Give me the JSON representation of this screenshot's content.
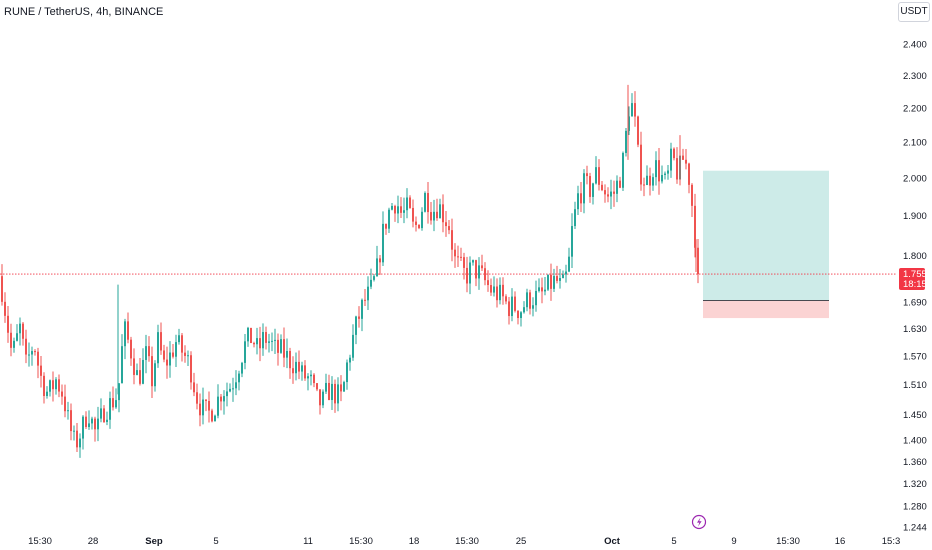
{
  "header": {
    "title": "RUNE / TetherUS, 4h, BINANCE",
    "currency_label": "USDT"
  },
  "colors": {
    "up": "#26a69a",
    "down": "#ef5350",
    "profit_zone": "#cdebe8",
    "loss_zone": "#fbd3d3",
    "price_line": "#f23645",
    "price_label_bg": "#f23645",
    "event_icon": "#9c27b0"
  },
  "icons": {
    "event": "lightning-icon"
  },
  "chart_data": {
    "type": "candlestick",
    "symbol": "RUNE / TetherUS",
    "interval": "4h",
    "exchange": "BINANCE",
    "y_scale": "log",
    "ylim": [
      1.23,
      2.5
    ],
    "y_ticks": [
      "2.400",
      "2.300",
      "2.200",
      "2.100",
      "2.000",
      "1.900",
      "1.800",
      "1.690",
      "1.630",
      "1.570",
      "1.510",
      "1.450",
      "1.400",
      "1.360",
      "1.320",
      "1.280",
      "1.244"
    ],
    "x_ticks": [
      "15:30",
      "28",
      "Sep",
      "5",
      "11",
      "15:30",
      "18",
      "15:30",
      "25",
      "Oct",
      "5",
      "9",
      "15:30",
      "16",
      "15:3"
    ],
    "current_price": 1.755,
    "countdown": "18:15",
    "path": [
      [
        0,
        1.75
      ],
      [
        6,
        1.66
      ],
      [
        12,
        1.57
      ],
      [
        20,
        1.63
      ],
      [
        26,
        1.55
      ],
      [
        34,
        1.6
      ],
      [
        40,
        1.53
      ],
      [
        48,
        1.49
      ],
      [
        56,
        1.52
      ],
      [
        63,
        1.49
      ],
      [
        69,
        1.43
      ],
      [
        75,
        1.39
      ],
      [
        82,
        1.42
      ],
      [
        88,
        1.46
      ],
      [
        96,
        1.41
      ],
      [
        104,
        1.46
      ],
      [
        110,
        1.47
      ],
      [
        118,
        1.49
      ],
      [
        124,
        1.63
      ],
      [
        131,
        1.58
      ],
      [
        138,
        1.52
      ],
      [
        146,
        1.57
      ],
      [
        152,
        1.52
      ],
      [
        158,
        1.6
      ],
      [
        164,
        1.55
      ],
      [
        170,
        1.57
      ],
      [
        176,
        1.6
      ],
      [
        182,
        1.58
      ],
      [
        190,
        1.55
      ],
      [
        196,
        1.49
      ],
      [
        202,
        1.46
      ],
      [
        208,
        1.45
      ],
      [
        216,
        1.47
      ],
      [
        222,
        1.5
      ],
      [
        228,
        1.5
      ],
      [
        234,
        1.52
      ],
      [
        240,
        1.56
      ],
      [
        246,
        1.6
      ],
      [
        252,
        1.61
      ],
      [
        258,
        1.58
      ],
      [
        264,
        1.61
      ],
      [
        270,
        1.6
      ],
      [
        276,
        1.58
      ],
      [
        282,
        1.58
      ],
      [
        290,
        1.56
      ],
      [
        296,
        1.55
      ],
      [
        302,
        1.53
      ],
      [
        310,
        1.52
      ],
      [
        316,
        1.48
      ],
      [
        322,
        1.47
      ],
      [
        328,
        1.5
      ],
      [
        336,
        1.49
      ],
      [
        342,
        1.48
      ],
      [
        346,
        1.54
      ],
      [
        352,
        1.6
      ],
      [
        358,
        1.65
      ],
      [
        364,
        1.69
      ],
      [
        370,
        1.71
      ],
      [
        376,
        1.75
      ],
      [
        380,
        1.81
      ],
      [
        384,
        1.87
      ],
      [
        390,
        1.92
      ],
      [
        396,
        1.94
      ],
      [
        402,
        1.9
      ],
      [
        408,
        1.92
      ],
      [
        414,
        1.86
      ],
      [
        420,
        1.9
      ],
      [
        426,
        1.96
      ],
      [
        432,
        1.91
      ],
      [
        438,
        1.93
      ],
      [
        444,
        1.9
      ],
      [
        450,
        1.87
      ],
      [
        454,
        1.79
      ],
      [
        460,
        1.77
      ],
      [
        466,
        1.75
      ],
      [
        472,
        1.77
      ],
      [
        478,
        1.76
      ],
      [
        484,
        1.74
      ],
      [
        490,
        1.72
      ],
      [
        496,
        1.71
      ],
      [
        502,
        1.7
      ],
      [
        508,
        1.68
      ],
      [
        514,
        1.68
      ],
      [
        520,
        1.67
      ],
      [
        526,
        1.69
      ],
      [
        532,
        1.7
      ],
      [
        538,
        1.7
      ],
      [
        544,
        1.71
      ],
      [
        550,
        1.73
      ],
      [
        556,
        1.74
      ],
      [
        562,
        1.72
      ],
      [
        568,
        1.76
      ],
      [
        572,
        1.86
      ],
      [
        578,
        1.95
      ],
      [
        584,
        1.98
      ],
      [
        590,
        1.97
      ],
      [
        596,
        2.01
      ],
      [
        602,
        1.98
      ],
      [
        608,
        1.95
      ],
      [
        614,
        1.96
      ],
      [
        618,
        1.99
      ],
      [
        622,
        2.02
      ],
      [
        626,
        2.12
      ],
      [
        630,
        2.23
      ],
      [
        634,
        2.18
      ],
      [
        638,
        2.06
      ],
      [
        642,
        2.0
      ],
      [
        648,
        1.99
      ],
      [
        654,
        2.04
      ],
      [
        660,
        2.01
      ],
      [
        666,
        1.98
      ],
      [
        672,
        2.06
      ],
      [
        678,
        2.01
      ],
      [
        684,
        2.06
      ],
      [
        690,
        1.99
      ],
      [
        694,
        1.87
      ],
      [
        698,
        1.79
      ],
      [
        700,
        1.755
      ]
    ],
    "trade_box": {
      "entry": 1.693,
      "target": 2.02,
      "stop": 1.653,
      "start_x_label": "Oct",
      "end_x_label": "16"
    }
  }
}
